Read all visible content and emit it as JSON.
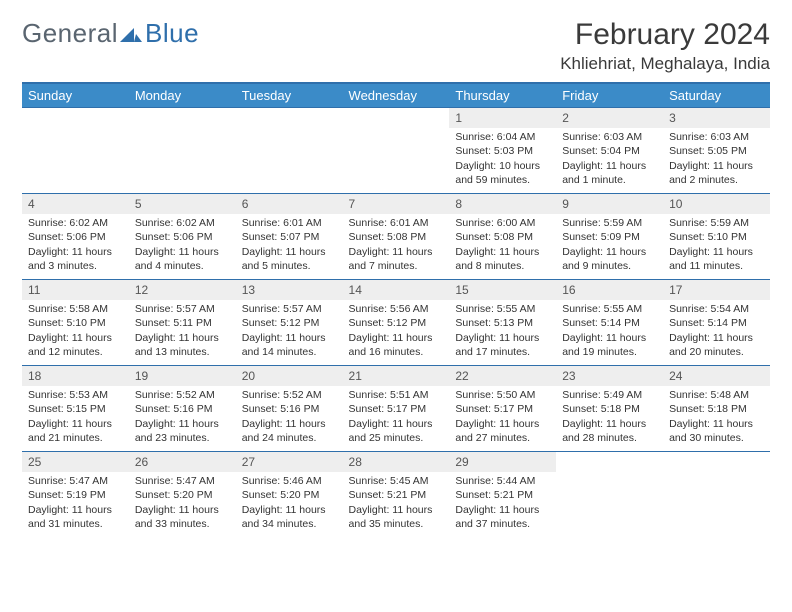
{
  "logo": {
    "text1": "General",
    "text2": "Blue"
  },
  "title": "February 2024",
  "location": "Khliehriat, Meghalaya, India",
  "colors": {
    "header_bg": "#3b8bc8",
    "header_text": "#ffffff",
    "rule": "#2f6fab",
    "daynum_bg": "#eeeeee",
    "body_text": "#333333",
    "logo_gray": "#5a6570",
    "logo_blue": "#2f6fab"
  },
  "day_headers": [
    "Sunday",
    "Monday",
    "Tuesday",
    "Wednesday",
    "Thursday",
    "Friday",
    "Saturday"
  ],
  "weeks": [
    [
      null,
      null,
      null,
      null,
      {
        "n": "1",
        "sr": "6:04 AM",
        "ss": "5:03 PM",
        "dl": "10 hours and 59 minutes."
      },
      {
        "n": "2",
        "sr": "6:03 AM",
        "ss": "5:04 PM",
        "dl": "11 hours and 1 minute."
      },
      {
        "n": "3",
        "sr": "6:03 AM",
        "ss": "5:05 PM",
        "dl": "11 hours and 2 minutes."
      }
    ],
    [
      {
        "n": "4",
        "sr": "6:02 AM",
        "ss": "5:06 PM",
        "dl": "11 hours and 3 minutes."
      },
      {
        "n": "5",
        "sr": "6:02 AM",
        "ss": "5:06 PM",
        "dl": "11 hours and 4 minutes."
      },
      {
        "n": "6",
        "sr": "6:01 AM",
        "ss": "5:07 PM",
        "dl": "11 hours and 5 minutes."
      },
      {
        "n": "7",
        "sr": "6:01 AM",
        "ss": "5:08 PM",
        "dl": "11 hours and 7 minutes."
      },
      {
        "n": "8",
        "sr": "6:00 AM",
        "ss": "5:08 PM",
        "dl": "11 hours and 8 minutes."
      },
      {
        "n": "9",
        "sr": "5:59 AM",
        "ss": "5:09 PM",
        "dl": "11 hours and 9 minutes."
      },
      {
        "n": "10",
        "sr": "5:59 AM",
        "ss": "5:10 PM",
        "dl": "11 hours and 11 minutes."
      }
    ],
    [
      {
        "n": "11",
        "sr": "5:58 AM",
        "ss": "5:10 PM",
        "dl": "11 hours and 12 minutes."
      },
      {
        "n": "12",
        "sr": "5:57 AM",
        "ss": "5:11 PM",
        "dl": "11 hours and 13 minutes."
      },
      {
        "n": "13",
        "sr": "5:57 AM",
        "ss": "5:12 PM",
        "dl": "11 hours and 14 minutes."
      },
      {
        "n": "14",
        "sr": "5:56 AM",
        "ss": "5:12 PM",
        "dl": "11 hours and 16 minutes."
      },
      {
        "n": "15",
        "sr": "5:55 AM",
        "ss": "5:13 PM",
        "dl": "11 hours and 17 minutes."
      },
      {
        "n": "16",
        "sr": "5:55 AM",
        "ss": "5:14 PM",
        "dl": "11 hours and 19 minutes."
      },
      {
        "n": "17",
        "sr": "5:54 AM",
        "ss": "5:14 PM",
        "dl": "11 hours and 20 minutes."
      }
    ],
    [
      {
        "n": "18",
        "sr": "5:53 AM",
        "ss": "5:15 PM",
        "dl": "11 hours and 21 minutes."
      },
      {
        "n": "19",
        "sr": "5:52 AM",
        "ss": "5:16 PM",
        "dl": "11 hours and 23 minutes."
      },
      {
        "n": "20",
        "sr": "5:52 AM",
        "ss": "5:16 PM",
        "dl": "11 hours and 24 minutes."
      },
      {
        "n": "21",
        "sr": "5:51 AM",
        "ss": "5:17 PM",
        "dl": "11 hours and 25 minutes."
      },
      {
        "n": "22",
        "sr": "5:50 AM",
        "ss": "5:17 PM",
        "dl": "11 hours and 27 minutes."
      },
      {
        "n": "23",
        "sr": "5:49 AM",
        "ss": "5:18 PM",
        "dl": "11 hours and 28 minutes."
      },
      {
        "n": "24",
        "sr": "5:48 AM",
        "ss": "5:18 PM",
        "dl": "11 hours and 30 minutes."
      }
    ],
    [
      {
        "n": "25",
        "sr": "5:47 AM",
        "ss": "5:19 PM",
        "dl": "11 hours and 31 minutes."
      },
      {
        "n": "26",
        "sr": "5:47 AM",
        "ss": "5:20 PM",
        "dl": "11 hours and 33 minutes."
      },
      {
        "n": "27",
        "sr": "5:46 AM",
        "ss": "5:20 PM",
        "dl": "11 hours and 34 minutes."
      },
      {
        "n": "28",
        "sr": "5:45 AM",
        "ss": "5:21 PM",
        "dl": "11 hours and 35 minutes."
      },
      {
        "n": "29",
        "sr": "5:44 AM",
        "ss": "5:21 PM",
        "dl": "11 hours and 37 minutes."
      },
      null,
      null
    ]
  ],
  "labels": {
    "sunrise": "Sunrise:",
    "sunset": "Sunset:",
    "daylight": "Daylight:"
  }
}
